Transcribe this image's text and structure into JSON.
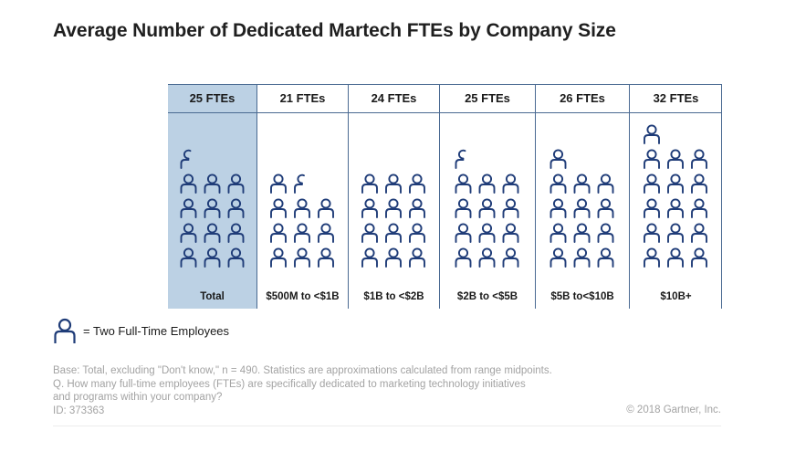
{
  "title": "Average Number of Dedicated Martech FTEs by Company Size",
  "chart_data": {
    "type": "table",
    "icon_unit": 2,
    "columns": [
      {
        "header": "25 FTEs",
        "label": "Total",
        "ftes": 25,
        "highlight": true
      },
      {
        "header": "21 FTEs",
        "label": "$500M to <$1B",
        "ftes": 21,
        "highlight": false
      },
      {
        "header": "24 FTEs",
        "label": "$1B to <$2B",
        "ftes": 24,
        "highlight": false
      },
      {
        "header": "25 FTEs",
        "label": "$2B to <$5B",
        "ftes": 25,
        "highlight": false
      },
      {
        "header": "26 FTEs",
        "label": "$5B to<$10B",
        "ftes": 26,
        "highlight": false
      },
      {
        "header": "32 FTEs",
        "label": "$10B+",
        "ftes": 32,
        "highlight": false
      }
    ]
  },
  "legend": {
    "text": "= Two Full-Time Employees",
    "icon": "person-icon"
  },
  "notes": {
    "line1": "Base: Total, excluding \"Don't know,\" n = 490. Statistics are approximations calculated from range midpoints.",
    "line2": "Q. How many full-time employees (FTEs) are specifically dedicated to marketing technology initiatives",
    "line3": "and programs within your company?",
    "line4": "ID: 373363"
  },
  "copyright": "© 2018 Gartner, Inc.",
  "colors": {
    "icon": "#1f3c78",
    "highlight": "#bcd1e4",
    "rule": "#4a6a92",
    "note": "#a3a3a3"
  }
}
